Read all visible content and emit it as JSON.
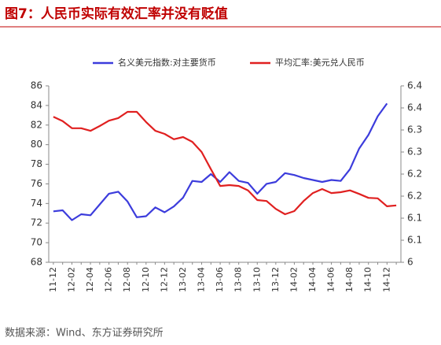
{
  "chart_data": {
    "type": "line",
    "title": "图7：人民币实际有效汇率并没有贬值",
    "source": "数据来源：Wind、东方证券研究所",
    "categories": [
      "11-12",
      null,
      "12-02",
      null,
      "12-04",
      null,
      "12-06",
      null,
      "12-08",
      null,
      "12-10",
      null,
      "12-12",
      null,
      "13-02",
      null,
      "13-04",
      null,
      "13-06",
      null,
      "13-08",
      null,
      "13-10",
      null,
      "13-12",
      null,
      "14-02",
      null,
      "14-04",
      null,
      "14-06",
      null,
      "14-08",
      null,
      "14-10",
      null,
      "14-12",
      null
    ],
    "series": [
      {
        "name": "名义美元指数:对主要货币",
        "color": "#3c3cdc",
        "axis": "y",
        "values": [
          73.2,
          73.3,
          72.3,
          72.9,
          72.8,
          73.9,
          75.0,
          75.2,
          74.2,
          72.6,
          72.7,
          73.6,
          73.1,
          73.7,
          74.6,
          76.3,
          76.2,
          77.0,
          76.2,
          77.2,
          76.3,
          76.1,
          75.0,
          76.0,
          76.2,
          77.1,
          76.9,
          76.6,
          76.4,
          76.2,
          76.4,
          76.3,
          77.5,
          79.6,
          81.0,
          82.9,
          84.2,
          null
        ]
      },
      {
        "name": "平均汇率:美元兑人民币",
        "color": "#e02020",
        "axis": "y2",
        "values": [
          6.33,
          6.32,
          6.304,
          6.304,
          6.298,
          6.309,
          6.321,
          6.327,
          6.341,
          6.341,
          6.318,
          6.298,
          6.291,
          6.279,
          6.284,
          6.273,
          6.25,
          6.211,
          6.173,
          6.175,
          6.173,
          6.163,
          6.141,
          6.139,
          6.121,
          6.109,
          6.116,
          6.139,
          6.157,
          6.166,
          6.157,
          6.159,
          6.163,
          6.155,
          6.146,
          6.145,
          6.127,
          6.129
        ]
      }
    ],
    "ylim": [
      68,
      86
    ],
    "yticks": [
      68,
      70,
      72,
      74,
      76,
      78,
      80,
      82,
      84,
      86
    ],
    "y2lim": [
      6.0,
      6.4
    ],
    "y2ticks": [
      6.0,
      {
        "value": 6.05,
        "label": "6.1"
      },
      6.1,
      {
        "value": 6.15,
        "label": "6.2"
      },
      6.2,
      {
        "value": 6.25,
        "label": "6.3"
      },
      6.3,
      {
        "value": 6.35,
        "label": "6.4"
      },
      6.4
    ],
    "grid": false,
    "legend": "top"
  }
}
